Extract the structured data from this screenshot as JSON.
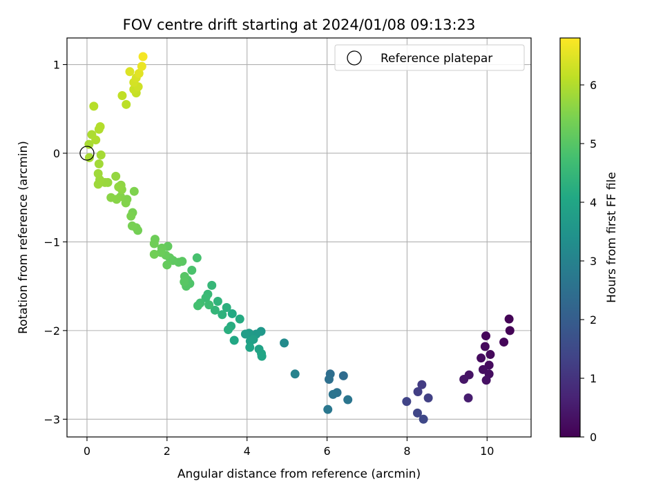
{
  "chart_data": {
    "type": "scatter",
    "title": "FOV centre drift starting at 2024/01/08 09:13:23",
    "xlabel": "Angular distance from reference (arcmin)",
    "ylabel": "Rotation from reference (arcmin)",
    "xlim": [
      -0.5,
      11.1
    ],
    "ylim": [
      -3.2,
      1.3
    ],
    "x_ticks": [
      0,
      2,
      4,
      6,
      8,
      10
    ],
    "y_ticks": [
      -3,
      -2,
      -1,
      0,
      1
    ],
    "grid": true,
    "legend": {
      "placement": "top-right",
      "entries": [
        "Reference platepar"
      ]
    },
    "reference_point": {
      "x": 0,
      "y": 0
    },
    "colorbar": {
      "label": "Hours from first FF file",
      "range": [
        0,
        6.8
      ],
      "ticks": [
        0,
        1,
        2,
        3,
        4,
        5,
        6
      ],
      "colormap": "viridis"
    },
    "points": [
      {
        "x": 10.55,
        "y": -1.87,
        "c": 0.05
      },
      {
        "x": 10.57,
        "y": -2.0,
        "c": 0.05
      },
      {
        "x": 10.42,
        "y": -2.13,
        "c": 0.1
      },
      {
        "x": 9.97,
        "y": -2.06,
        "c": 0.1
      },
      {
        "x": 9.95,
        "y": -2.18,
        "c": 0.15
      },
      {
        "x": 10.08,
        "y": -2.27,
        "c": 0.15
      },
      {
        "x": 9.85,
        "y": -2.31,
        "c": 0.2
      },
      {
        "x": 10.05,
        "y": -2.39,
        "c": 0.2
      },
      {
        "x": 9.9,
        "y": -2.44,
        "c": 0.25
      },
      {
        "x": 10.05,
        "y": -2.49,
        "c": 0.25
      },
      {
        "x": 9.98,
        "y": -2.56,
        "c": 0.3
      },
      {
        "x": 9.55,
        "y": -2.5,
        "c": 0.35
      },
      {
        "x": 9.42,
        "y": -2.55,
        "c": 0.4
      },
      {
        "x": 9.53,
        "y": -2.76,
        "c": 0.55
      },
      {
        "x": 8.37,
        "y": -2.61,
        "c": 1.2
      },
      {
        "x": 8.27,
        "y": -2.69,
        "c": 1.25
      },
      {
        "x": 8.53,
        "y": -2.76,
        "c": 1.3
      },
      {
        "x": 7.99,
        "y": -2.8,
        "c": 1.35
      },
      {
        "x": 8.26,
        "y": -2.93,
        "c": 1.4
      },
      {
        "x": 8.41,
        "y": -3.0,
        "c": 1.45
      },
      {
        "x": 6.41,
        "y": -2.51,
        "c": 2.4
      },
      {
        "x": 6.08,
        "y": -2.49,
        "c": 2.45
      },
      {
        "x": 6.05,
        "y": -2.55,
        "c": 2.5
      },
      {
        "x": 6.25,
        "y": -2.7,
        "c": 2.55
      },
      {
        "x": 6.15,
        "y": -2.72,
        "c": 2.6
      },
      {
        "x": 6.52,
        "y": -2.78,
        "c": 2.65
      },
      {
        "x": 6.02,
        "y": -2.89,
        "c": 2.7
      },
      {
        "x": 5.2,
        "y": -2.49,
        "c": 3.0
      },
      {
        "x": 4.93,
        "y": -2.14,
        "c": 3.25
      },
      {
        "x": 4.35,
        "y": -2.01,
        "c": 3.6
      },
      {
        "x": 4.23,
        "y": -2.04,
        "c": 3.65
      },
      {
        "x": 4.05,
        "y": -2.03,
        "c": 3.7
      },
      {
        "x": 3.96,
        "y": -2.04,
        "c": 3.75
      },
      {
        "x": 4.16,
        "y": -2.1,
        "c": 3.8
      },
      {
        "x": 4.08,
        "y": -2.12,
        "c": 3.85
      },
      {
        "x": 4.3,
        "y": -2.21,
        "c": 3.9
      },
      {
        "x": 4.07,
        "y": -2.19,
        "c": 3.95
      },
      {
        "x": 4.36,
        "y": -2.26,
        "c": 3.98
      },
      {
        "x": 4.37,
        "y": -2.29,
        "c": 4.0
      },
      {
        "x": 3.68,
        "y": -2.11,
        "c": 4.05
      },
      {
        "x": 3.63,
        "y": -1.81,
        "c": 4.1
      },
      {
        "x": 3.82,
        "y": -1.87,
        "c": 4.15
      },
      {
        "x": 3.6,
        "y": -1.95,
        "c": 4.2
      },
      {
        "x": 3.53,
        "y": -1.99,
        "c": 4.25
      },
      {
        "x": 3.49,
        "y": -1.74,
        "c": 4.3
      },
      {
        "x": 3.38,
        "y": -1.82,
        "c": 4.35
      },
      {
        "x": 3.27,
        "y": -1.67,
        "c": 4.4
      },
      {
        "x": 3.2,
        "y": -1.77,
        "c": 4.45
      },
      {
        "x": 3.12,
        "y": -1.49,
        "c": 4.5
      },
      {
        "x": 3.02,
        "y": -1.59,
        "c": 4.55
      },
      {
        "x": 2.97,
        "y": -1.63,
        "c": 4.6
      },
      {
        "x": 3.05,
        "y": -1.71,
        "c": 4.65
      },
      {
        "x": 2.83,
        "y": -1.69,
        "c": 4.7
      },
      {
        "x": 2.77,
        "y": -1.72,
        "c": 4.75
      },
      {
        "x": 2.75,
        "y": -1.18,
        "c": 4.8
      },
      {
        "x": 2.62,
        "y": -1.32,
        "c": 4.85
      },
      {
        "x": 2.57,
        "y": -1.47,
        "c": 4.9
      },
      {
        "x": 2.51,
        "y": -1.43,
        "c": 4.93
      },
      {
        "x": 2.48,
        "y": -1.5,
        "c": 4.96
      },
      {
        "x": 2.44,
        "y": -1.39,
        "c": 5.0
      },
      {
        "x": 2.43,
        "y": -1.45,
        "c": 5.02
      },
      {
        "x": 2.38,
        "y": -1.22,
        "c": 5.05
      },
      {
        "x": 2.29,
        "y": -1.23,
        "c": 5.08
      },
      {
        "x": 2.15,
        "y": -1.21,
        "c": 5.1
      },
      {
        "x": 2.07,
        "y": -1.18,
        "c": 5.12
      },
      {
        "x": 2.02,
        "y": -1.05,
        "c": 5.15
      },
      {
        "x": 2.0,
        "y": -1.26,
        "c": 5.18
      },
      {
        "x": 1.97,
        "y": -1.15,
        "c": 5.2
      },
      {
        "x": 1.87,
        "y": -1.07,
        "c": 5.22
      },
      {
        "x": 1.85,
        "y": -1.12,
        "c": 5.25
      },
      {
        "x": 1.7,
        "y": -0.97,
        "c": 5.28
      },
      {
        "x": 1.68,
        "y": -1.02,
        "c": 5.3
      },
      {
        "x": 1.68,
        "y": -1.14,
        "c": 5.32
      },
      {
        "x": 1.27,
        "y": -0.87,
        "c": 5.35
      },
      {
        "x": 1.23,
        "y": -0.84,
        "c": 5.38
      },
      {
        "x": 1.13,
        "y": -0.82,
        "c": 5.4
      },
      {
        "x": 1.14,
        "y": -0.67,
        "c": 5.42
      },
      {
        "x": 1.1,
        "y": -0.71,
        "c": 5.45
      },
      {
        "x": 1.18,
        "y": -0.43,
        "c": 5.48
      },
      {
        "x": 1.0,
        "y": -0.52,
        "c": 5.5
      },
      {
        "x": 0.97,
        "y": -0.56,
        "c": 5.52
      },
      {
        "x": 0.84,
        "y": -0.49,
        "c": 5.55
      },
      {
        "x": 0.74,
        "y": -0.52,
        "c": 5.58
      },
      {
        "x": 0.6,
        "y": -0.5,
        "c": 5.6
      },
      {
        "x": 0.87,
        "y": -0.41,
        "c": 5.62
      },
      {
        "x": 0.85,
        "y": -0.36,
        "c": 5.65
      },
      {
        "x": 0.79,
        "y": -0.38,
        "c": 5.68
      },
      {
        "x": 0.72,
        "y": -0.26,
        "c": 5.7
      },
      {
        "x": 0.52,
        "y": -0.33,
        "c": 5.72
      },
      {
        "x": 0.45,
        "y": -0.33,
        "c": 5.75
      },
      {
        "x": 0.32,
        "y": -0.3,
        "c": 5.78
      },
      {
        "x": 0.28,
        "y": -0.35,
        "c": 5.8
      },
      {
        "x": 0.28,
        "y": -0.23,
        "c": 5.82
      },
      {
        "x": 0.3,
        "y": -0.12,
        "c": 5.85
      },
      {
        "x": 0.35,
        "y": -0.02,
        "c": 5.88
      },
      {
        "x": 0.06,
        "y": -0.05,
        "c": 5.9
      },
      {
        "x": 0.05,
        "y": 0.1,
        "c": 5.92
      },
      {
        "x": 0.12,
        "y": 0.21,
        "c": 5.95
      },
      {
        "x": 0.22,
        "y": 0.15,
        "c": 5.98
      },
      {
        "x": 0.3,
        "y": 0.27,
        "c": 6.0
      },
      {
        "x": 0.33,
        "y": 0.3,
        "c": 6.02
      },
      {
        "x": 0.17,
        "y": 0.53,
        "c": 6.05
      },
      {
        "x": 0.98,
        "y": 0.55,
        "c": 6.1
      },
      {
        "x": 0.88,
        "y": 0.65,
        "c": 6.15
      },
      {
        "x": 1.23,
        "y": 0.68,
        "c": 6.2
      },
      {
        "x": 1.17,
        "y": 0.72,
        "c": 6.25
      },
      {
        "x": 1.28,
        "y": 0.75,
        "c": 6.3
      },
      {
        "x": 1.17,
        "y": 0.8,
        "c": 6.35
      },
      {
        "x": 1.23,
        "y": 0.85,
        "c": 6.4
      },
      {
        "x": 1.07,
        "y": 0.92,
        "c": 6.45
      },
      {
        "x": 1.3,
        "y": 0.9,
        "c": 6.5
      },
      {
        "x": 1.37,
        "y": 0.98,
        "c": 6.6
      },
      {
        "x": 1.4,
        "y": 1.09,
        "c": 6.7
      }
    ]
  }
}
